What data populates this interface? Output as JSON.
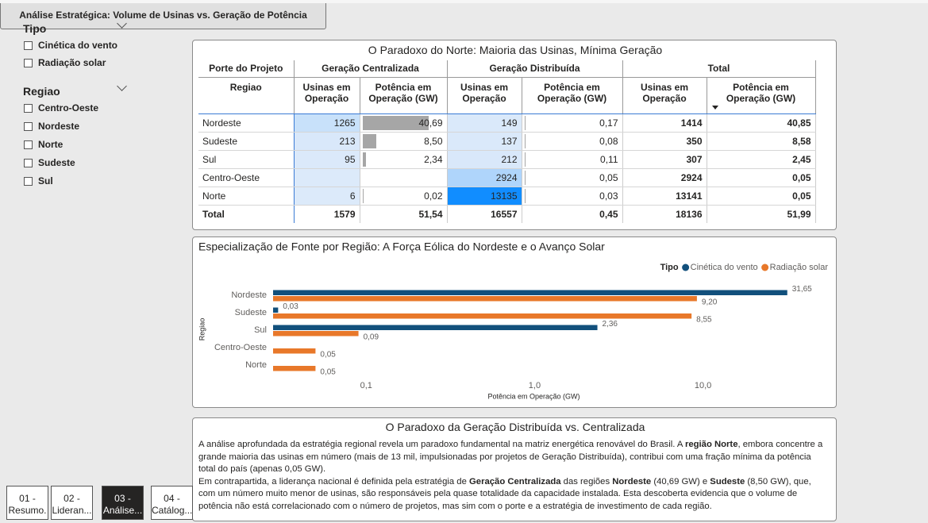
{
  "header": {
    "title": "Análise Estratégica: Volume de Usinas vs. Geração de Potência"
  },
  "slicers": [
    {
      "title": "Tipo",
      "options": [
        "Cinética do vento",
        "Radiação solar"
      ]
    },
    {
      "title": "Regiao",
      "options": [
        "Centro-Oeste",
        "Nordeste",
        "Norte",
        "Sudeste",
        "Sul"
      ]
    }
  ],
  "table": {
    "title": "O Paradoxo do Norte: Maioria das Usinas, Mínima Geração",
    "group_headers": [
      "Porte do Projeto",
      "Geração Centralizada",
      "Geração Distribuída",
      "Total"
    ],
    "columns": [
      "Regiao",
      "Usinas em Operação",
      "Potência em Operação (GW)",
      "Usinas em Operação",
      "Potência em Operação (GW)",
      "Usinas em Operação",
      "Potência em Operação (GW)"
    ],
    "rows": [
      [
        "Nordeste",
        "1265",
        "40,69",
        "149",
        "0,17",
        "1414",
        "40,85"
      ],
      [
        "Sudeste",
        "213",
        "8,50",
        "137",
        "0,08",
        "350",
        "8,58"
      ],
      [
        "Sul",
        "95",
        "2,34",
        "212",
        "0,11",
        "307",
        "2,45"
      ],
      [
        "Centro-Oeste",
        null,
        null,
        "2924",
        "0,05",
        "2924",
        "0,05"
      ],
      [
        "Norte",
        "6",
        "0,02",
        "13135",
        "0,03",
        "13141",
        "0,05"
      ]
    ],
    "total": [
      "Total",
      "1579",
      "51,54",
      "16557",
      "0,45",
      "18136",
      "51,99"
    ]
  },
  "chart_data": {
    "type": "bar",
    "orientation": "horizontal",
    "title": "Especialização de Fonte por Região: A Força Eólica do Nordeste e o Avanço Solar",
    "categories": [
      "Nordeste",
      "Sudeste",
      "Sul",
      "Centro-Oeste",
      "Norte"
    ],
    "series": [
      {
        "name": "Cinética do vento",
        "color": "#12507c",
        "values": [
          31.65,
          0.03,
          2.36,
          null,
          null
        ],
        "value_labels": [
          "31,65",
          "0,03",
          "2,36",
          null,
          null
        ]
      },
      {
        "name": "Radiação solar",
        "color": "#e8782a",
        "values": [
          9.2,
          8.55,
          0.09,
          0.05,
          0.05
        ],
        "value_labels": [
          "9,20",
          "8,55",
          "0,09",
          "0,05",
          "0,05"
        ]
      }
    ],
    "legend_title": "Tipo",
    "legend": "top-right",
    "x_label": "Potência em Operação (GW)",
    "y_label": "Regiao",
    "xscale": "log",
    "grid": false,
    "xlim": [
      0.028,
      35
    ],
    "xticks": [
      {
        "value": 0.1,
        "label": "0,1"
      },
      {
        "value": 1,
        "label": "1,0"
      },
      {
        "value": 10,
        "label": "10,0"
      }
    ]
  },
  "text_box": {
    "title": "O Paradoxo da Geração Distribuída vs. Centralizada",
    "paragraphs": [
      [
        {
          "text": "A análise aprofundada da estratégia regional revela um paradoxo fundamental na matriz energética renovável do Brasil. A ",
          "bold": false
        },
        {
          "text": "região Norte",
          "bold": true
        },
        {
          "text": ", embora concentre a grande maioria das usinas em número (mais de 13 mil, impulsionadas por projetos de Geração Distribuída), contribui com uma fração mínima da potência total do país (apenas 0,05 GW).",
          "bold": false
        }
      ],
      [
        {
          "text": "Em contrapartida, a liderança nacional é definida pela estratégia de ",
          "bold": false
        },
        {
          "text": "Geração Centralizada",
          "bold": true
        },
        {
          "text": " das regiões ",
          "bold": false
        },
        {
          "text": "Nordeste",
          "bold": true
        },
        {
          "text": " (40,69 GW) e ",
          "bold": false
        },
        {
          "text": "Sudeste",
          "bold": true
        },
        {
          "text": " (8,50 GW), que, com um número muito menor de usinas, são responsáveis pela quase totalidade da capacidade instalada. Esta descoberta evidencia que o volume de potência não está correlacionado com o número de projetos, mas sim com o porte e a estratégia de investimento de cada região.",
          "bold": false
        }
      ]
    ]
  },
  "tabs": {
    "items": [
      "01 - Resumo.",
      "02 - Lideran...",
      "03 - Análise...",
      "04 - Catálog..."
    ],
    "active": 2
  }
}
